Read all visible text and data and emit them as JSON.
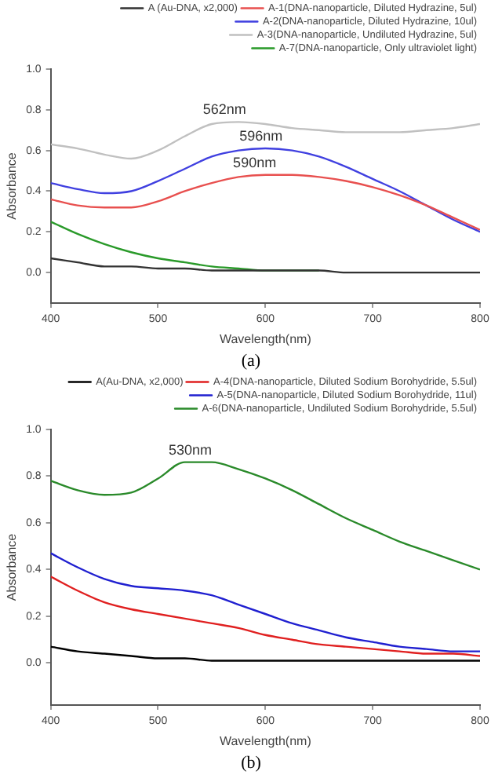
{
  "chart_data": [
    {
      "type": "line",
      "xlabel": "Wavelength(nm)",
      "ylabel": "Absorbance",
      "x": [
        400,
        425,
        450,
        475,
        500,
        525,
        550,
        575,
        600,
        625,
        650,
        675,
        700,
        725,
        750,
        775,
        800
      ],
      "series": [
        {
          "name": "A (Au-DNA, x2,000)",
          "color": "#333333",
          "values": [
            0.07,
            0.05,
            0.03,
            0.03,
            0.02,
            0.02,
            0.01,
            0.01,
            0.01,
            0.01,
            0.01,
            0.0,
            0.0,
            0.0,
            0.0,
            0.0,
            0.0
          ]
        },
        {
          "name": "A-1(DNA-nanoparticle, Diluted Hydrazine, 5ul)",
          "color": "#e8504f",
          "values": [
            0.36,
            0.33,
            0.32,
            0.32,
            0.35,
            0.4,
            0.44,
            0.47,
            0.48,
            0.48,
            0.47,
            0.45,
            0.42,
            0.38,
            0.33,
            0.27,
            0.21
          ]
        },
        {
          "name": "A-2(DNA-nanoparticle, Diluted Hydrazine, 10ul)",
          "color": "#4040e0",
          "values": [
            0.44,
            0.41,
            0.39,
            0.4,
            0.45,
            0.51,
            0.57,
            0.6,
            0.61,
            0.6,
            0.57,
            0.52,
            0.46,
            0.4,
            0.33,
            0.26,
            0.2
          ]
        },
        {
          "name": "A-3(DNA-nanoparticle, Undiluted Hydrazine, 5ul)",
          "color": "#c0c0c0",
          "values": [
            0.63,
            0.61,
            0.58,
            0.56,
            0.6,
            0.67,
            0.73,
            0.74,
            0.73,
            0.71,
            0.7,
            0.69,
            0.69,
            0.69,
            0.7,
            0.71,
            0.73
          ]
        },
        {
          "name": "A-7(DNA-nanoparticle, Only ultraviolet light)",
          "color": "#2a9a2a",
          "values": [
            0.25,
            0.19,
            0.14,
            0.1,
            0.07,
            0.05,
            0.03,
            0.02,
            0.01,
            0.01,
            0.01,
            null,
            null,
            null,
            null,
            null,
            null
          ]
        }
      ],
      "xlim": [
        400,
        800
      ],
      "xticks": [
        400,
        500,
        600,
        700,
        800
      ],
      "ylim": [
        -0.15,
        1.0
      ],
      "yticks": [
        {
          "value": 0,
          "label": "0.0"
        },
        {
          "value": 0.2,
          "label": "0.2"
        },
        {
          "value": 0.4,
          "label": "0.4"
        },
        {
          "value": 0.6,
          "label": "0.6"
        },
        {
          "value": 0.8,
          "label": "0.8"
        },
        {
          "value": 1.0,
          "label": "1.0"
        }
      ],
      "grid": false,
      "legend": "top right",
      "marker": "none",
      "line_style": "solid",
      "annotations": [
        {
          "text": "562nm",
          "x": 562,
          "y": 0.74
        },
        {
          "text": "596nm",
          "x": 596,
          "y": 0.61
        },
        {
          "text": "590nm",
          "x": 590,
          "y": 0.48
        },
        "(a)"
      ]
    },
    {
      "type": "line",
      "xlabel": "Wavelength(nm)",
      "ylabel": "Absorbance",
      "x": [
        400,
        425,
        450,
        475,
        500,
        525,
        550,
        575,
        600,
        625,
        650,
        675,
        700,
        725,
        750,
        775,
        800
      ],
      "series": [
        {
          "name": "A(Au-DNA, x2,000)",
          "color": "#000000",
          "values": [
            0.07,
            0.05,
            0.04,
            0.03,
            0.02,
            0.02,
            0.01,
            0.01,
            0.01,
            0.01,
            0.01,
            0.01,
            0.01,
            0.01,
            0.01,
            0.01,
            0.01
          ]
        },
        {
          "name": "A-4(DNA-nanoparticle, Diluted Sodium Borohydride, 5.5ul)",
          "color": "#e02020",
          "values": [
            0.37,
            0.31,
            0.26,
            0.23,
            0.21,
            0.19,
            0.17,
            0.15,
            0.12,
            0.1,
            0.08,
            0.07,
            0.06,
            0.05,
            0.04,
            0.04,
            0.03
          ]
        },
        {
          "name": "A-5(DNA-nanoparticle, Diluted Sodium Borohydride, 11ul)",
          "color": "#2020d0",
          "values": [
            0.47,
            0.41,
            0.36,
            0.33,
            0.32,
            0.31,
            0.29,
            0.25,
            0.21,
            0.17,
            0.14,
            0.11,
            0.09,
            0.07,
            0.06,
            0.05,
            0.05
          ]
        },
        {
          "name": "A-6(DNA-nanoparticle, Undiluted Sodium Borohydride, 5.5ul)",
          "color": "#2a8a2a",
          "values": [
            0.78,
            0.74,
            0.72,
            0.73,
            0.79,
            0.86,
            0.86,
            0.83,
            0.79,
            0.74,
            0.68,
            0.62,
            0.57,
            0.52,
            0.48,
            0.44,
            0.4
          ]
        }
      ],
      "xlim": [
        400,
        800
      ],
      "xticks": [
        400,
        500,
        600,
        700,
        800
      ],
      "ylim": [
        -0.18,
        1.0
      ],
      "yticks": [
        {
          "value": 0,
          "label": "0.0"
        },
        {
          "value": 0.2,
          "label": "0.2"
        },
        {
          "value": 0.4,
          "label": "0.4"
        },
        {
          "value": 0.6,
          "label": "0.6"
        },
        {
          "value": 0.8,
          "label": "0.8"
        },
        {
          "value": 1.0,
          "label": "1.0"
        }
      ],
      "grid": false,
      "legend": "top right",
      "marker": "none",
      "line_style": "solid",
      "annotations": [
        {
          "text": "530nm",
          "x": 530,
          "y": 0.86
        },
        "(b)"
      ]
    }
  ]
}
